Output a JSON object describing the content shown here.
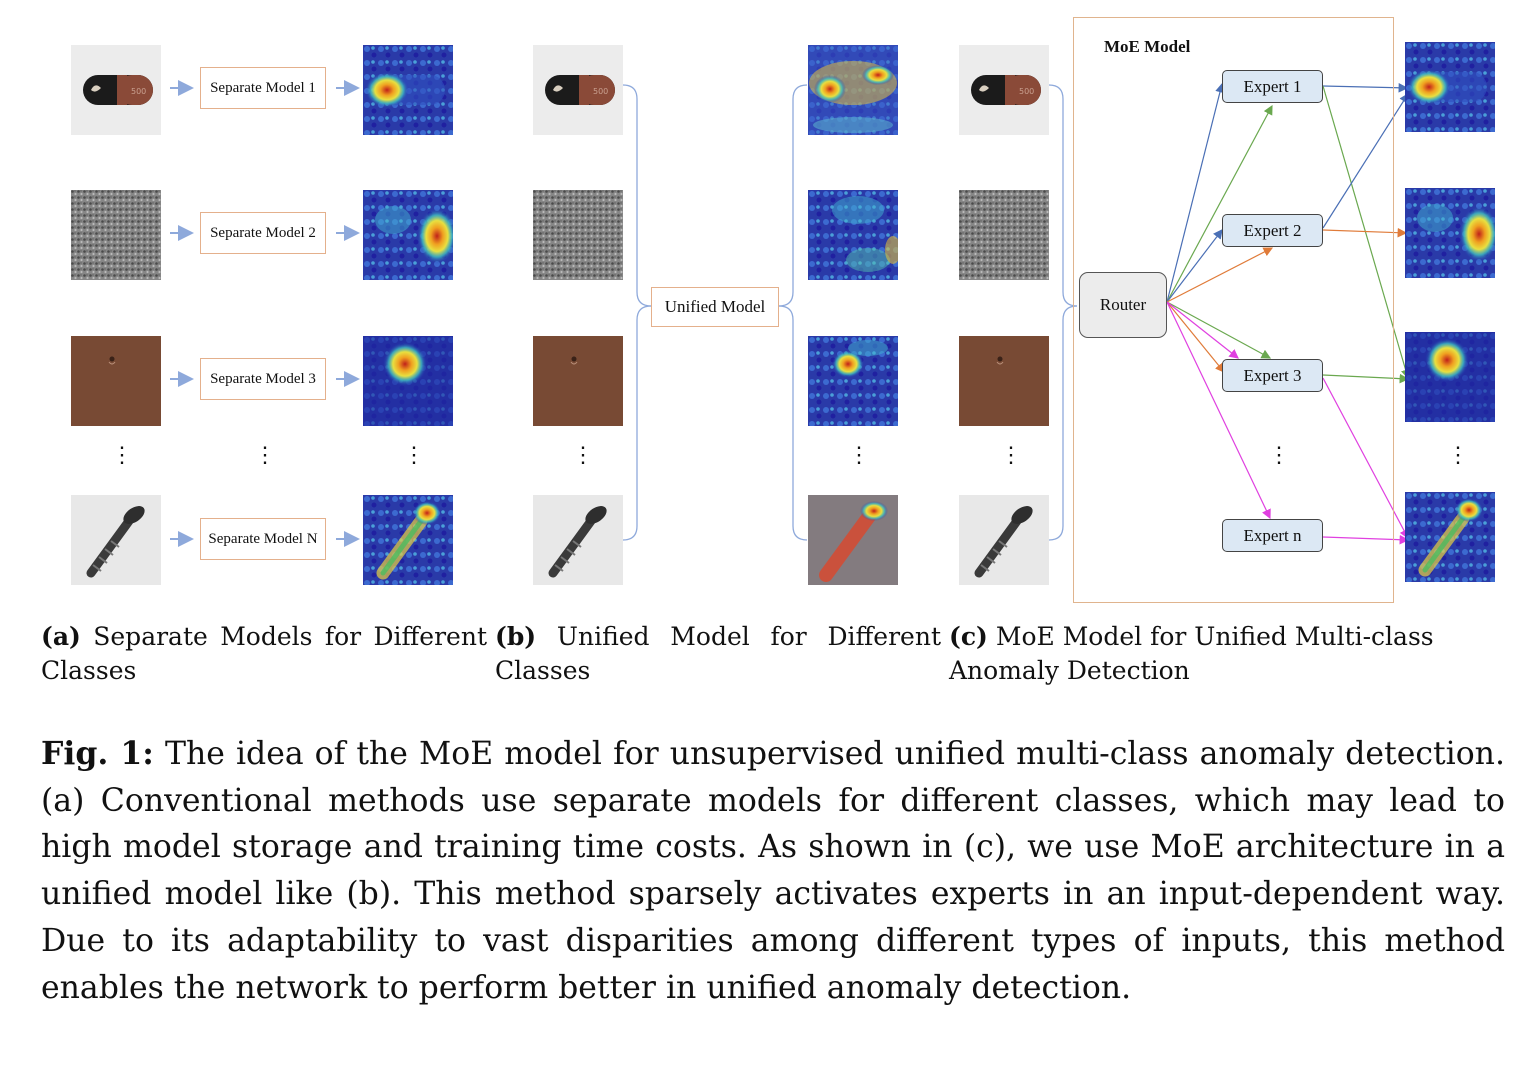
{
  "panel_a": {
    "models": [
      {
        "label": "Separate Model 1"
      },
      {
        "label": "Separate Model 2"
      },
      {
        "label": "Separate Model 3"
      },
      {
        "label": "Separate Model N"
      }
    ]
  },
  "panel_b": {
    "model_label": "Unified Model"
  },
  "panel_c": {
    "title": "MoE Model",
    "router_label": "Router",
    "experts": [
      {
        "label": "Expert 1"
      },
      {
        "label": "Expert 2"
      },
      {
        "label": "Expert 3"
      },
      {
        "label": "Expert n"
      }
    ]
  },
  "subcaptions": {
    "a_tag": "(a)",
    "a_text": "Separate Models for Different Classes",
    "b_tag": "(b)",
    "b_text": "Unified Model for Different Classes",
    "c_tag": "(c)",
    "c_text": "MoE Model for Unified Multi-class Anomaly Detection"
  },
  "caption": {
    "label": "Fig. 1:",
    "text": "The idea of the MoE model for unsupervised unified multi-class anomaly detection. (a) Conventional methods use separate models for different classes, which may lead to high model storage and training time costs. As shown in (c), we use MoE architecture in a unified model like (b). This method sparsely activates experts in an input-dependent way. Due to its adaptability to vast disparities among different types of inputs, this method enables the network to perform better in unified anomaly detection."
  },
  "colors": {
    "box_border": "#e4b08c",
    "expert_fill": "#dce8f4",
    "arrow_blue": "#4a6fb5",
    "arrow_green": "#6aa84f",
    "arrow_orange": "#e07b39",
    "arrow_magenta": "#e040e0",
    "small_arrow": "#8ea9db"
  },
  "images": {
    "inputs": [
      "capsule-image",
      "carpet-image",
      "leather-image",
      "screw-image"
    ],
    "outputs": [
      "capsule-heatmap",
      "carpet-heatmap",
      "leather-heatmap",
      "screw-heatmap"
    ]
  }
}
